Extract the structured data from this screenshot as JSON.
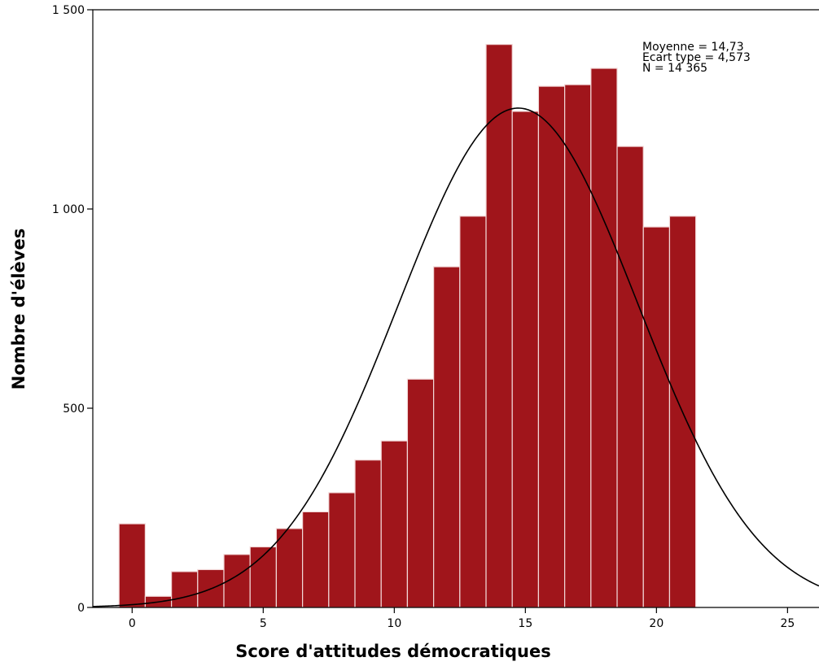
{
  "chart_data": {
    "type": "bar",
    "subtype": "histogram_with_normal_curve",
    "xlabel": "Score d'attitudes démocratiques",
    "ylabel": "Nombre d'élèves",
    "xlim": [
      -1.5,
      26.2
    ],
    "ylim": [
      0,
      1500
    ],
    "x_ticks": [
      {
        "value": 0,
        "label": "0"
      },
      {
        "value": 5,
        "label": "5"
      },
      {
        "value": 10,
        "label": "10"
      },
      {
        "value": 15,
        "label": "15"
      },
      {
        "value": 20,
        "label": "20"
      },
      {
        "value": 25,
        "label": "25"
      }
    ],
    "y_ticks": [
      {
        "value": 0,
        "label": "0"
      },
      {
        "value": 500,
        "label": "500"
      },
      {
        "value": 1000,
        "label": "1 000"
      },
      {
        "value": 1500,
        "label": "1 500"
      }
    ],
    "bin_width": 1,
    "categories": [
      0,
      1,
      2,
      3,
      4,
      5,
      6,
      7,
      8,
      9,
      10,
      11,
      12,
      13,
      14,
      15,
      16,
      17,
      18,
      19,
      20,
      21
    ],
    "values": [
      210,
      28,
      90,
      95,
      133,
      152,
      198,
      240,
      288,
      370,
      418,
      573,
      855,
      982,
      1413,
      1245,
      1308,
      1312,
      1353,
      1157,
      955,
      982
    ],
    "normal_curve": {
      "mean": 14.73,
      "sd": 4.573,
      "n": 14365
    },
    "stats_box": [
      "Moyenne = 14,73",
      "Ecart type = 4,573",
      "N = 14 365"
    ],
    "colors": {
      "bar": "#a0151b",
      "bar_edge": "#f2d8d8",
      "curve": "#000000"
    },
    "grid": false,
    "legend": "none"
  }
}
